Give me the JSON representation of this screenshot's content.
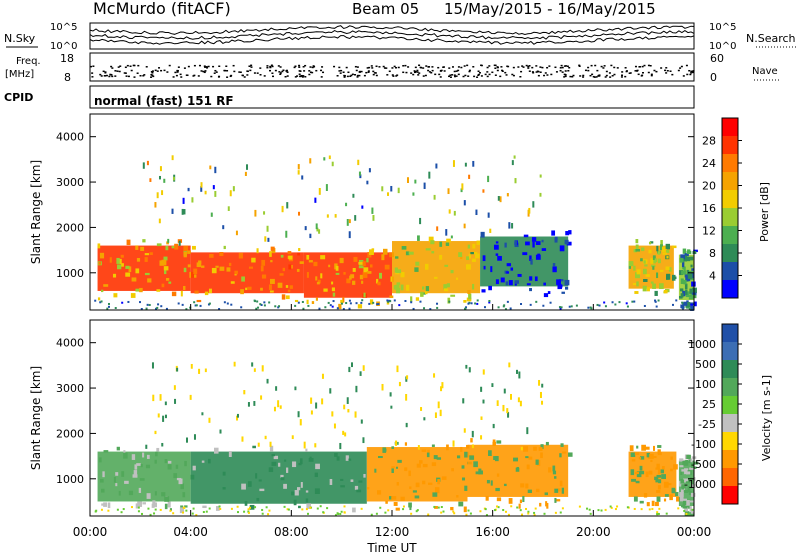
{
  "header": {
    "station": "McMurdo (fitACF)",
    "beam": "Beam 05",
    "dates": "15/May/2015 - 16/May/2015"
  },
  "top_panels": {
    "nsky_label": "N.Sky",
    "nsearch_label": "N.Search",
    "noise_ticks_left": [
      "10^5",
      "10^0"
    ],
    "noise_ticks_right": [
      "10^5",
      "10^0"
    ],
    "freq_label": "Freq.",
    "freq_unit": "[MHz]",
    "freq_ticks": [
      "18",
      "8"
    ],
    "nave_label": "Nave",
    "nave_ticks": [
      "60",
      "0"
    ],
    "cpid_label": "CPID",
    "cpid_value": "normal (fast) 151 RF"
  },
  "chart_data": [
    {
      "type": "heatmap",
      "panel": "power",
      "xlabel": "",
      "ylabel": "Slant Range [km]",
      "xlim": [
        "00:00",
        "24:00"
      ],
      "ylim": [
        180,
        4500
      ],
      "yticks": [
        1000,
        2000,
        3000,
        4000
      ],
      "colorbar": {
        "label": "Power [dB]",
        "ticks": [
          "28",
          "24",
          "20",
          "16",
          "12",
          "8",
          "4"
        ],
        "colors": [
          "#ff0000",
          "#ff3300",
          "#ff7a00",
          "#f5a300",
          "#f2cc00",
          "#9acd32",
          "#4caf50",
          "#2e8b57",
          "#1c4fa8",
          "#0000ff"
        ]
      },
      "regions": [
        {
          "t0": 0.3,
          "t1": 4.0,
          "r0": 600,
          "r1": 1600,
          "level": 26
        },
        {
          "t0": 4.0,
          "t1": 8.5,
          "r0": 550,
          "r1": 1450,
          "level": 28
        },
        {
          "t0": 8.5,
          "t1": 12.0,
          "r0": 450,
          "r1": 1450,
          "level": 28
        },
        {
          "t0": 12.0,
          "t1": 15.5,
          "r0": 550,
          "r1": 1700,
          "level": 22
        },
        {
          "t0": 15.5,
          "t1": 19.0,
          "r0": 700,
          "r1": 1800,
          "level": 10
        },
        {
          "t0": 21.4,
          "t1": 23.2,
          "r0": 650,
          "r1": 1600,
          "level": 20
        },
        {
          "t0": 23.4,
          "t1": 24.0,
          "r0": 400,
          "r1": 1400,
          "level": 16
        }
      ]
    },
    {
      "type": "heatmap",
      "panel": "velocity",
      "xlabel": "Time UT",
      "ylabel": "Slant Range [km]",
      "xlim": [
        "00:00",
        "24:00"
      ],
      "ylim": [
        180,
        4500
      ],
      "xticks": [
        "00:00",
        "04:00",
        "08:00",
        "12:00",
        "16:00",
        "20:00",
        "00:00"
      ],
      "yticks": [
        1000,
        2000,
        3000,
        4000
      ],
      "colorbar": {
        "label": "Velocity [m s-1]",
        "ticks": [
          "1000",
          "500",
          "100",
          "25",
          "-25",
          "-100",
          "-500",
          "-1000"
        ],
        "colors": [
          "#2050a8",
          "#3c6eb4",
          "#2e8b57",
          "#52a85a",
          "#66cc33",
          "#c0c0c0",
          "#ffd700",
          "#ff9900",
          "#ff6600",
          "#ff0000"
        ]
      },
      "regions": [
        {
          "t0": 0.3,
          "t1": 4.0,
          "r0": 500,
          "r1": 1600,
          "level": 60
        },
        {
          "t0": 4.0,
          "t1": 11.0,
          "r0": 450,
          "r1": 1600,
          "level": 80
        },
        {
          "t0": 11.0,
          "t1": 15.0,
          "r0": 500,
          "r1": 1700,
          "level": -150
        },
        {
          "t0": 15.0,
          "t1": 19.0,
          "r0": 600,
          "r1": 1750,
          "level": -120
        },
        {
          "t0": 21.4,
          "t1": 23.3,
          "r0": 600,
          "r1": 1600,
          "level": -130
        },
        {
          "t0": 23.4,
          "t1": 24.0,
          "r0": 400,
          "r1": 1400,
          "level": 60
        }
      ]
    }
  ]
}
